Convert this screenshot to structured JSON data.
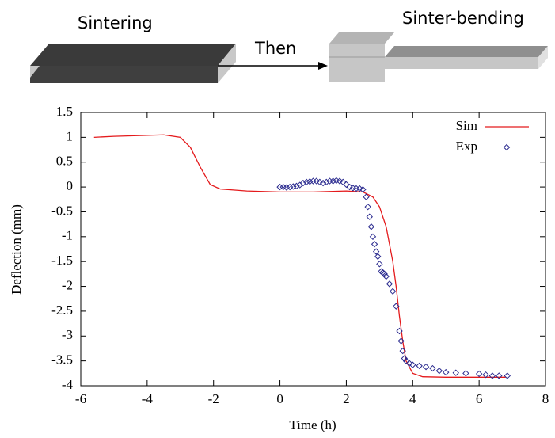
{
  "diagram": {
    "labels": [
      "Sintering",
      "Then",
      "Sinter-bending"
    ]
  },
  "chart_data": {
    "type": "line",
    "xlabel": "Time (h)",
    "ylabel": "Deflection (mm)",
    "xlim": [
      -6,
      8
    ],
    "xticks": [
      -6,
      -4,
      -2,
      0,
      2,
      4,
      6,
      8
    ],
    "ylim": [
      -4,
      1.5
    ],
    "yticks": [
      -4,
      -3.5,
      -3,
      -2.5,
      -2,
      -1.5,
      -1,
      -0.5,
      0,
      0.5,
      1,
      1.5
    ],
    "legend": "top-right",
    "series": [
      {
        "name": "Sim",
        "type": "line",
        "color": "#e41a1c",
        "x": [
          -5.6,
          -5,
          -4,
          -3.5,
          -3,
          -2.7,
          -2.4,
          -2.1,
          -1.8,
          -1,
          0,
          1,
          2,
          2.5,
          2.8,
          3,
          3.2,
          3.4,
          3.5,
          3.6,
          3.7,
          3.8,
          4,
          4.3,
          5,
          6,
          6.8
        ],
        "values": [
          1.0,
          1.02,
          1.04,
          1.05,
          1.0,
          0.8,
          0.4,
          0.05,
          -0.04,
          -0.08,
          -0.1,
          -0.1,
          -0.08,
          -0.1,
          -0.2,
          -0.4,
          -0.8,
          -1.5,
          -2.0,
          -2.6,
          -3.1,
          -3.5,
          -3.75,
          -3.82,
          -3.83,
          -3.83,
          -3.83
        ]
      },
      {
        "name": "Exp",
        "type": "scatter",
        "color": "#2b2b8f",
        "x": [
          0,
          0.1,
          0.2,
          0.3,
          0.4,
          0.5,
          0.6,
          0.7,
          0.8,
          0.9,
          1.0,
          1.1,
          1.2,
          1.3,
          1.4,
          1.5,
          1.6,
          1.7,
          1.8,
          1.9,
          2.0,
          2.1,
          2.2,
          2.3,
          2.4,
          2.5,
          2.6,
          2.65,
          2.7,
          2.75,
          2.8,
          2.85,
          2.9,
          2.95,
          3.0,
          3.05,
          3.1,
          3.15,
          3.2,
          3.3,
          3.4,
          3.5,
          3.6,
          3.65,
          3.7,
          3.75,
          3.8,
          3.9,
          4.0,
          4.2,
          4.4,
          4.6,
          4.8,
          5.0,
          5.3,
          5.6,
          6.0,
          6.2,
          6.4,
          6.6,
          6.85
        ],
        "values": [
          0,
          0,
          -0.01,
          0,
          0.01,
          0.02,
          0.04,
          0.08,
          0.1,
          0.11,
          0.12,
          0.12,
          0.1,
          0.08,
          0.1,
          0.12,
          0.12,
          0.13,
          0.12,
          0.1,
          0.05,
          0.0,
          -0.02,
          -0.03,
          -0.03,
          -0.05,
          -0.2,
          -0.4,
          -0.6,
          -0.8,
          -1.0,
          -1.15,
          -1.3,
          -1.4,
          -1.55,
          -1.7,
          -1.72,
          -1.75,
          -1.8,
          -1.95,
          -2.1,
          -2.4,
          -2.9,
          -3.1,
          -3.3,
          -3.45,
          -3.5,
          -3.55,
          -3.58,
          -3.6,
          -3.62,
          -3.65,
          -3.7,
          -3.73,
          -3.74,
          -3.75,
          -3.76,
          -3.78,
          -3.8,
          -3.8,
          -3.8
        ]
      }
    ]
  }
}
